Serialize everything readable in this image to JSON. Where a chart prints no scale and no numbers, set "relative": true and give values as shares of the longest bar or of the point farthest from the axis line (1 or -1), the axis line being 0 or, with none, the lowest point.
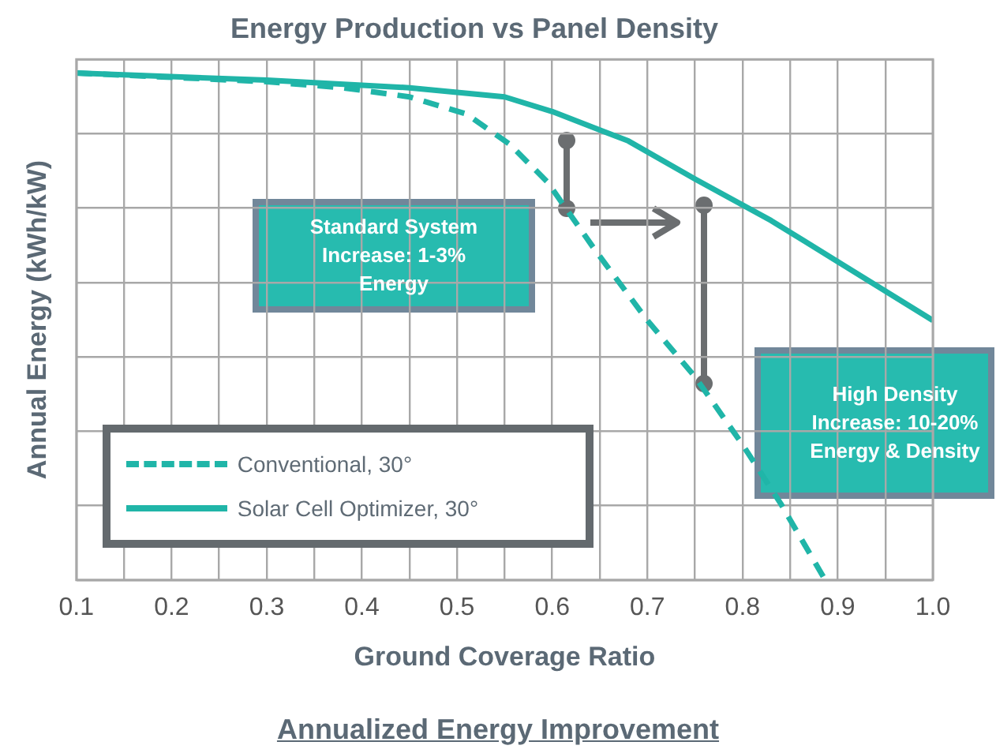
{
  "chart_data": {
    "type": "line",
    "title": "Energy Production vs Panel Density",
    "xlabel": "Ground Coverage Ratio",
    "ylabel": "Annual Energy (kWh/kW)",
    "relative": true,
    "xlim": [
      0.1,
      1.0
    ],
    "xticks": [
      0.1,
      {
        "value": 0.15,
        "label": null
      },
      0.2,
      {
        "value": 0.25,
        "label": null
      },
      0.3,
      {
        "value": 0.35,
        "label": null
      },
      0.4,
      {
        "value": 0.45,
        "label": null
      },
      0.5,
      {
        "value": 0.55,
        "label": null
      },
      0.6,
      {
        "value": 0.65,
        "label": null
      },
      0.7,
      {
        "value": 0.75,
        "label": null
      },
      0.8,
      {
        "value": 0.85,
        "label": null
      },
      0.9,
      {
        "value": 0.95,
        "label": null
      },
      {
        "value": 1.0,
        "label": "1.0"
      }
    ],
    "series": [
      {
        "name": "Conventional, 30°",
        "color": "#20b5a8",
        "line_style": "dashed",
        "x": [
          0.1,
          0.3,
          0.38,
          0.45,
          0.51,
          0.555,
          0.595,
          0.645,
          0.7,
          0.75,
          0.8,
          0.84,
          0.885
        ],
        "values": [
          1,
          0.983,
          0.971,
          0.953,
          0.919,
          0.86,
          0.785,
          0.651,
          0.512,
          0.401,
          0.267,
          0.151,
          0.006
        ]
      },
      {
        "name": "Solar Cell Optimizer, 30°",
        "color": "#20b5a8",
        "line_style": "solid",
        "x": [
          0.1,
          0.3,
          0.45,
          0.55,
          0.6,
          0.68,
          0.75,
          0.83,
          0.9,
          1.0
        ],
        "values": [
          1,
          0.986,
          0.971,
          0.953,
          0.924,
          0.866,
          0.791,
          0.709,
          0.628,
          0.512
        ]
      }
    ],
    "marker": "none",
    "grid": true,
    "legend": "bottom left",
    "annotations": [
      "Standard System Increase: 1-3% Energy",
      "High Density Increase: 10-20% Energy & Density",
      "Annualized Energy Improvement"
    ]
  }
}
